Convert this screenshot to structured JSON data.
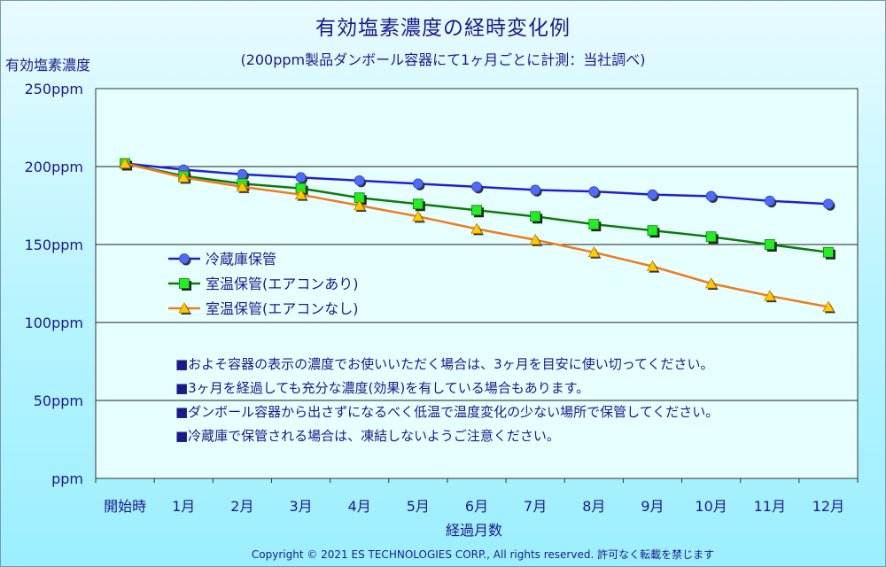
{
  "chart_data": {
    "type": "line",
    "title": "有効塩素濃度の経時変化例",
    "subtitle": "(200ppm製品ダンボール容器にて1ヶ月ごとに計測：当社調べ)",
    "ylabel": "有効塩素濃度",
    "xlabel": "経過月数",
    "ylim": [
      0,
      250
    ],
    "yticks": [
      0,
      50,
      100,
      150,
      200,
      250
    ],
    "ytick_labels": [
      "ppm",
      "50ppm",
      "100ppm",
      "150ppm",
      "200ppm",
      "250ppm"
    ],
    "categories": [
      "開始時",
      "1月",
      "2月",
      "3月",
      "4月",
      "5月",
      "6月",
      "7月",
      "8月",
      "9月",
      "10月",
      "11月",
      "12月"
    ],
    "grid": true,
    "legend_position": "center-left",
    "series": [
      {
        "name": "冷蔵庫保管",
        "color": "#1f1fd6",
        "marker": "circle",
        "marker_color": "#4d6bff",
        "values": [
          202,
          198,
          195,
          193,
          191,
          189,
          187,
          185,
          184,
          182,
          181,
          178,
          176
        ]
      },
      {
        "name": "室温保管(エアコンあり)",
        "color": "#0e7a0e",
        "marker": "square",
        "marker_color": "#22ee22",
        "values": [
          202,
          194,
          189,
          186,
          180,
          176,
          172,
          168,
          163,
          159,
          155,
          150,
          145
        ]
      },
      {
        "name": "室温保管(エアコンなし)",
        "color": "#f07a1e",
        "marker": "triangle",
        "marker_color": "#ffcc00",
        "values": [
          202,
          193,
          187,
          182,
          175,
          168,
          160,
          153,
          145,
          136,
          125,
          117,
          110
        ]
      }
    ],
    "notes": [
      "■およそ容器の表示の濃度でお使いいただく場合は、3ヶ月を目安に使い切ってください。",
      "■3ヶ月を経過しても充分な濃度(効果)を有している場合もあります。",
      "■ダンボール容器から出さずになるべく低温で温度変化の少ない場所で保管してください。",
      "■冷蔵庫で保管される場合は、凍結しないようご注意ください。"
    ],
    "plot_background": "#e6ffff",
    "frame_background": "#b6f4ff",
    "text_color": "#1a1a8c"
  },
  "copyright": "Copyright © 2021 ES TECHNOLOGIES CORP., All rights reserved. 許可なく転載を禁じます"
}
